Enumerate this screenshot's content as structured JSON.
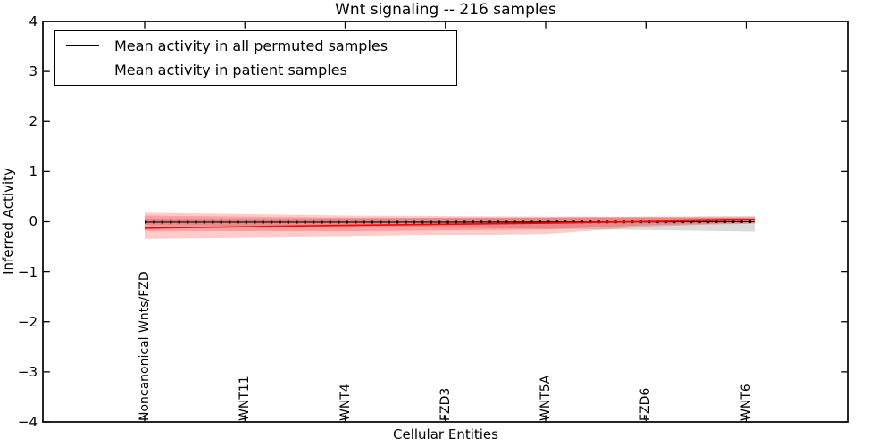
{
  "figure": {
    "title": "Wnt signaling -- 216 samples",
    "xlabel": "Cellular Entities",
    "ylabel": "Inferred Activity"
  },
  "legend": {
    "entries": [
      {
        "label": "Mean activity in all permuted samples",
        "color": "#000000"
      },
      {
        "label": "Mean activity in patient samples",
        "color": "#ff0000"
      }
    ]
  },
  "axes": {
    "ylim": [
      -4,
      4
    ],
    "ytick_values": [
      4,
      3,
      2,
      1,
      0,
      -1,
      -2,
      -3,
      -4
    ],
    "yticklabels": [
      "4",
      "3",
      "2",
      "1",
      "0",
      "−1",
      "−2",
      "−3",
      "−4"
    ],
    "grid": false,
    "legend_position": "upper left"
  },
  "chart_data": {
    "type": "line",
    "title": "Wnt signaling -- 216 samples",
    "xlabel": "Cellular Entities",
    "ylabel": "Inferred Activity",
    "ylim": [
      -4,
      4
    ],
    "n_points": 74,
    "categories": [
      "Noncanonical Wnts/FZD",
      "WNT11",
      "WNT4",
      "FZD3",
      "WNT5A",
      "FZD6",
      "WNT6"
    ],
    "category_indices": [
      0,
      12,
      24,
      36,
      48,
      60,
      72
    ],
    "series": [
      {
        "name": "Mean activity in all permuted samples",
        "color": "#000000",
        "width": 1.1,
        "markers": true,
        "points": [
          [
            0,
            -0.008
          ],
          [
            36,
            -0.008
          ],
          [
            73,
            0.0
          ]
        ],
        "bands": [
          {
            "color": "rgba(0,0,0,0.14)",
            "upper": [
              [
                0,
                0.05
              ],
              [
                24,
                0.07
              ],
              [
                48,
                0.09
              ],
              [
                73,
                0.115
              ]
            ],
            "lower": [
              [
                0,
                -0.065
              ],
              [
                24,
                -0.1
              ],
              [
                48,
                -0.14
              ],
              [
                73,
                -0.195
              ]
            ]
          }
        ]
      },
      {
        "name": "Mean activity in patient samples",
        "color": "#ff0000",
        "width": 1.6,
        "markers": false,
        "points": [
          [
            0,
            -0.13
          ],
          [
            12,
            -0.1
          ],
          [
            24,
            -0.072
          ],
          [
            36,
            -0.05
          ],
          [
            48,
            -0.028
          ],
          [
            60,
            0.004
          ],
          [
            66,
            0.02
          ],
          [
            73,
            0.04
          ]
        ],
        "bands": [
          {
            "color": "rgba(255,0,0,0.20)",
            "upper": [
              [
                0,
                0.18
              ],
              [
                24,
                0.125
              ],
              [
                48,
                0.105
              ],
              [
                73,
                0.095
              ]
            ],
            "lower": [
              [
                0,
                -0.345
              ],
              [
                24,
                -0.3
              ],
              [
                48,
                -0.245
              ],
              [
                60,
                -0.1
              ],
              [
                66,
                -0.065
              ],
              [
                73,
                -0.04
              ]
            ]
          },
          {
            "color": "rgba(255,0,0,0.22)",
            "upper": [
              [
                0,
                0.125
              ],
              [
                24,
                0.082
              ],
              [
                48,
                0.08
              ],
              [
                73,
                0.08
              ]
            ],
            "lower": [
              [
                0,
                -0.185
              ],
              [
                24,
                -0.19
              ],
              [
                48,
                -0.155
              ],
              [
                60,
                -0.07
              ],
              [
                73,
                -0.028
              ]
            ]
          }
        ]
      }
    ]
  }
}
